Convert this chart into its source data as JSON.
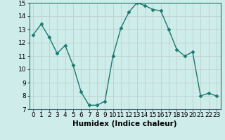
{
  "x": [
    0,
    1,
    2,
    3,
    4,
    5,
    6,
    7,
    8,
    9,
    10,
    11,
    12,
    13,
    14,
    15,
    16,
    17,
    18,
    19,
    20,
    21,
    22,
    23
  ],
  "y": [
    12.6,
    13.4,
    12.4,
    11.2,
    11.8,
    10.3,
    8.3,
    7.3,
    7.3,
    7.6,
    11.0,
    13.1,
    14.3,
    15.0,
    14.8,
    14.5,
    14.4,
    13.0,
    11.5,
    11.0,
    11.3,
    8.0,
    8.2,
    8.0
  ],
  "line_color": "#1a7a6e",
  "marker": "D",
  "markersize": 2.5,
  "linewidth": 1.0,
  "xlabel": "Humidex (Indice chaleur)",
  "xlim": [
    -0.5,
    23.5
  ],
  "ylim": [
    7,
    15
  ],
  "yticks": [
    7,
    8,
    9,
    10,
    11,
    12,
    13,
    14,
    15
  ],
  "xticks": [
    0,
    1,
    2,
    3,
    4,
    5,
    6,
    7,
    8,
    9,
    10,
    11,
    12,
    13,
    14,
    15,
    16,
    17,
    18,
    19,
    20,
    21,
    22,
    23
  ],
  "bg_color": "#ceecea",
  "grid_color": "#c0d4d2",
  "xlabel_fontsize": 7.5,
  "tick_fontsize": 6.5
}
